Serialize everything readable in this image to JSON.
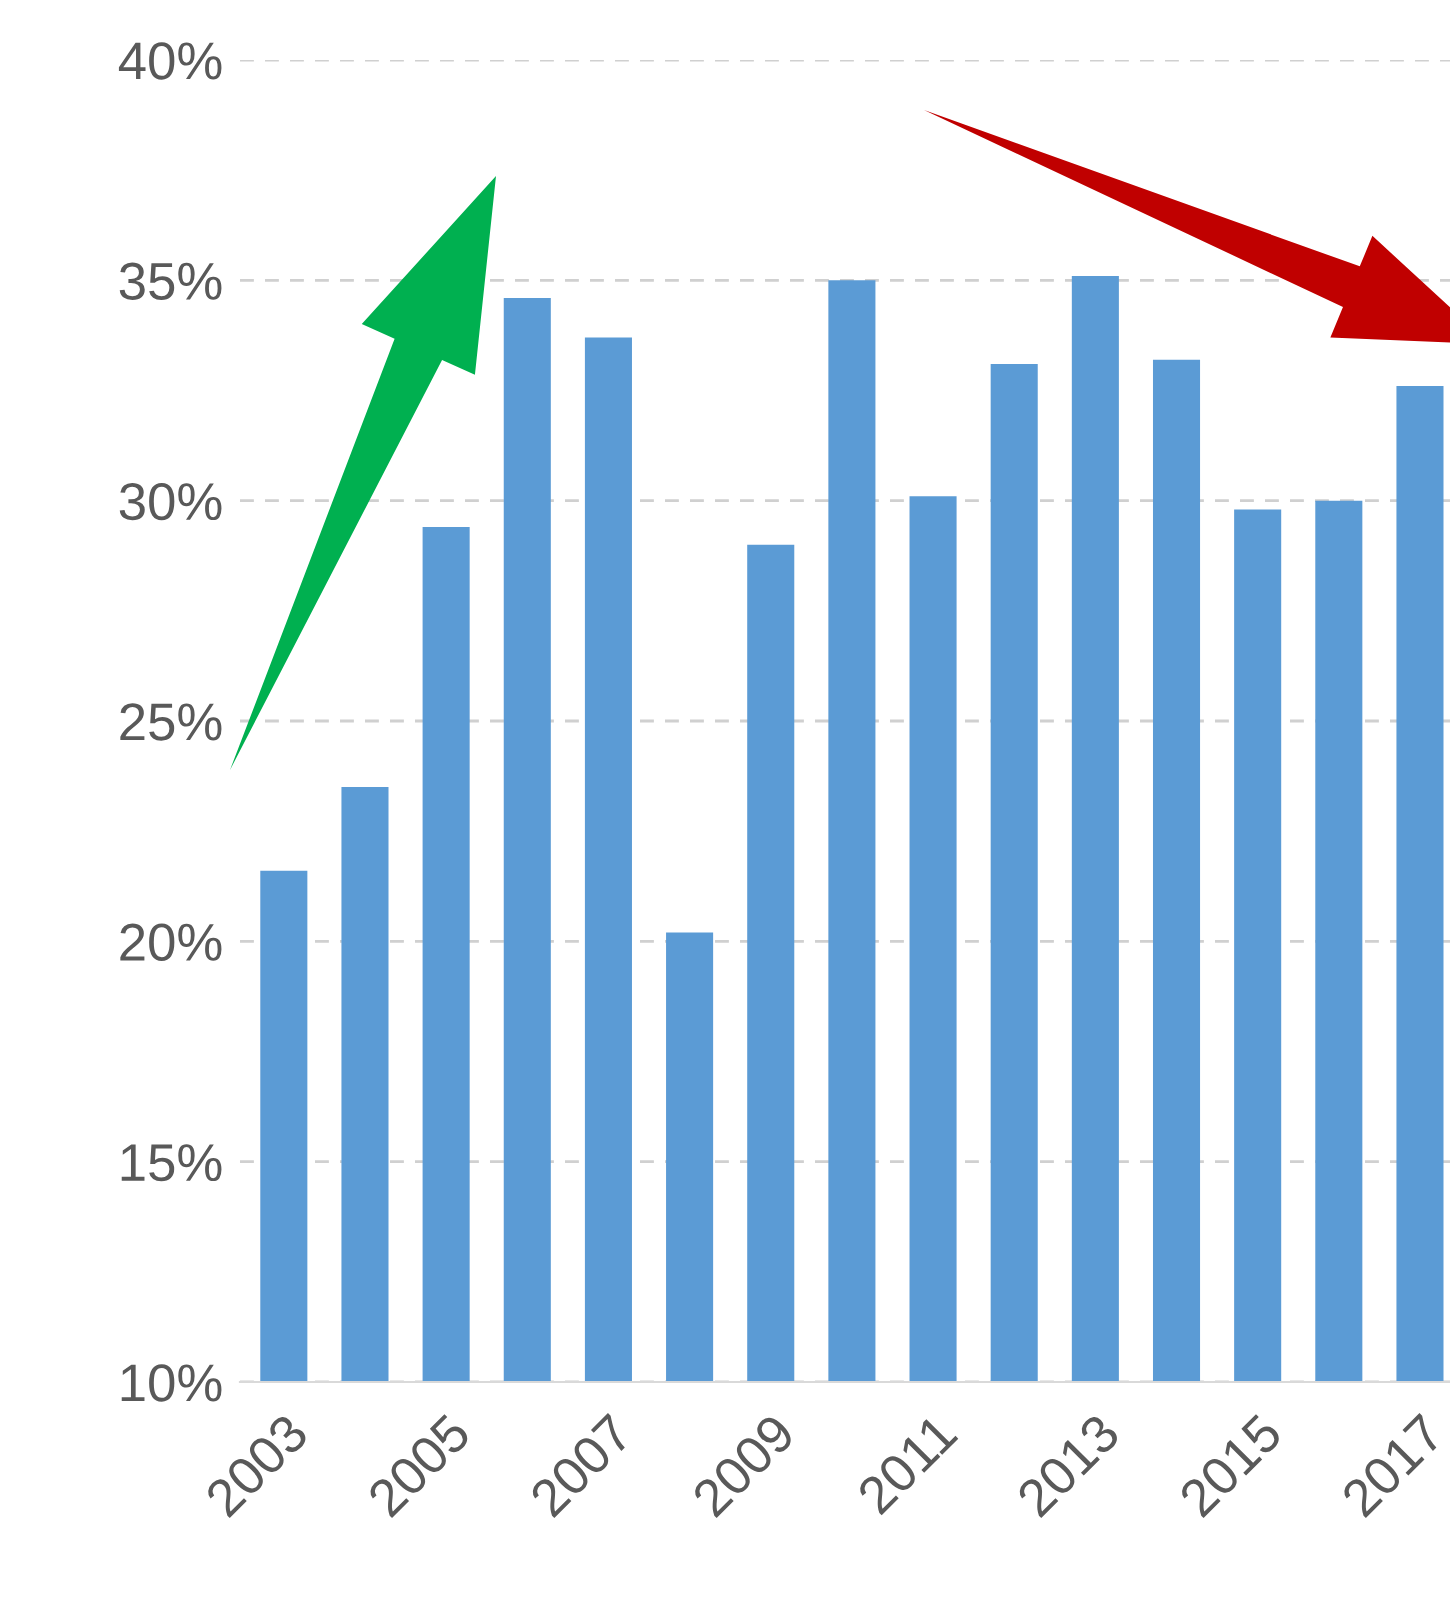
{
  "chart_data": {
    "type": "bar",
    "categories": [
      "2003",
      null,
      "2005",
      null,
      "2007",
      null,
      "2009",
      null,
      "2011",
      null,
      "2013",
      null,
      "2015",
      null,
      "2017"
    ],
    "values": [
      21.6,
      23.5,
      29.4,
      34.6,
      33.7,
      20.2,
      29.0,
      35.0,
      30.1,
      33.1,
      35.1,
      33.2,
      29.8,
      30.0,
      32.6
    ],
    "color": "#5b9bd5",
    "ylim": [
      10,
      40
    ],
    "yticks": [
      {
        "value": 10,
        "label": "10%"
      },
      {
        "value": 15,
        "label": "15%"
      },
      {
        "value": 20,
        "label": "20%"
      },
      {
        "value": 25,
        "label": "25%"
      },
      {
        "value": 30,
        "label": "30%"
      },
      {
        "value": 35,
        "label": "35%"
      },
      {
        "value": 40,
        "label": "40%"
      }
    ],
    "grid": "y",
    "legend": false
  }
}
